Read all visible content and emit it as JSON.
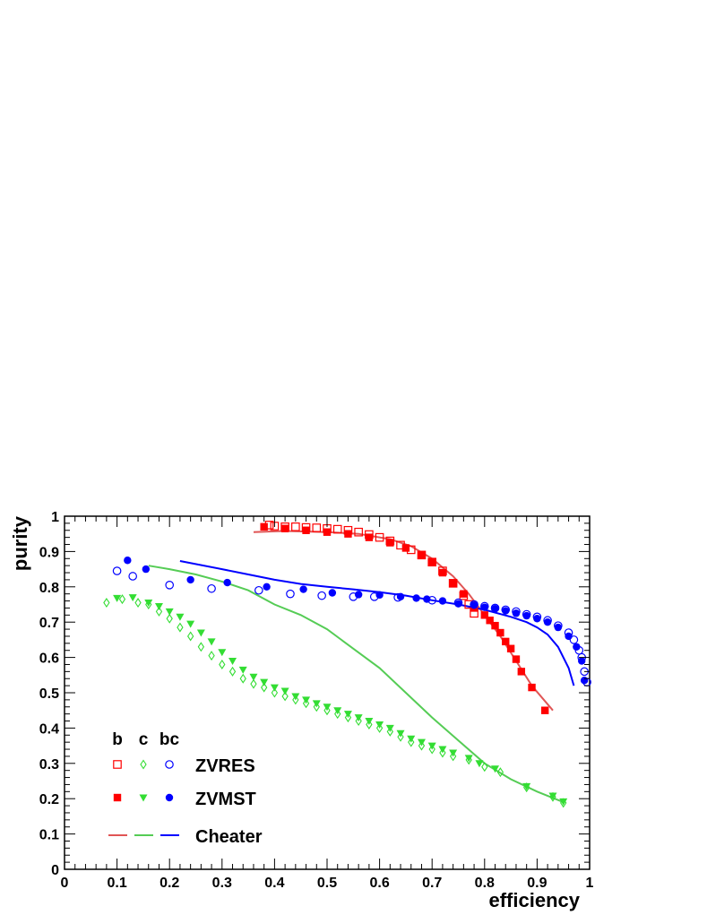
{
  "chart_data": {
    "type": "scatter",
    "xlabel": "efficiency",
    "ylabel": "purity",
    "xlim": [
      0,
      1
    ],
    "ylim": [
      0,
      1
    ],
    "x_ticks": [
      0,
      0.1,
      0.2,
      0.3,
      0.4,
      0.5,
      0.6,
      0.7,
      0.8,
      0.9,
      1
    ],
    "y_ticks": [
      0,
      0.1,
      0.2,
      0.3,
      0.4,
      0.5,
      0.6,
      0.7,
      0.8,
      0.9,
      1
    ],
    "x_tick_labels": [
      "0",
      "0.1",
      "0.2",
      "0.3",
      "0.4",
      "0.5",
      "0.6",
      "0.7",
      "0.8",
      "0.9",
      "1"
    ],
    "y_tick_labels": [
      "0",
      "0.1",
      "0.2",
      "0.3",
      "0.4",
      "0.5",
      "0.6",
      "0.7",
      "0.8",
      "0.9",
      "1"
    ],
    "grid": false,
    "legend": {
      "position": "bottom-left",
      "column_headers": [
        "b",
        "c",
        "bc"
      ],
      "rows": [
        "ZVRES",
        "ZVMST",
        "Cheater"
      ]
    },
    "colors": {
      "b": "#ff0000",
      "c": "#33dd33",
      "bc": "#0000ff",
      "b_line": "#e05555",
      "c_line": "#55cc55"
    },
    "series": [
      {
        "group": "ZVRES",
        "flavour": "b",
        "marker": "open-square",
        "points": [
          [
            0.39,
            0.975
          ],
          [
            0.4,
            0.972
          ],
          [
            0.42,
            0.97
          ],
          [
            0.44,
            0.97
          ],
          [
            0.46,
            0.968
          ],
          [
            0.48,
            0.967
          ],
          [
            0.5,
            0.965
          ],
          [
            0.52,
            0.963
          ],
          [
            0.54,
            0.96
          ],
          [
            0.56,
            0.955
          ],
          [
            0.58,
            0.948
          ],
          [
            0.6,
            0.94
          ],
          [
            0.62,
            0.93
          ],
          [
            0.64,
            0.918
          ],
          [
            0.66,
            0.905
          ],
          [
            0.68,
            0.89
          ],
          [
            0.7,
            0.87
          ],
          [
            0.72,
            0.845
          ],
          [
            0.74,
            0.81
          ],
          [
            0.76,
            0.775
          ],
          [
            0.77,
            0.75
          ],
          [
            0.78,
            0.725
          ]
        ]
      },
      {
        "group": "ZVMST",
        "flavour": "b",
        "marker": "filled-square",
        "points": [
          [
            0.38,
            0.97
          ],
          [
            0.42,
            0.965
          ],
          [
            0.46,
            0.96
          ],
          [
            0.5,
            0.955
          ],
          [
            0.54,
            0.95
          ],
          [
            0.58,
            0.94
          ],
          [
            0.62,
            0.925
          ],
          [
            0.65,
            0.91
          ],
          [
            0.68,
            0.89
          ],
          [
            0.7,
            0.87
          ],
          [
            0.72,
            0.84
          ],
          [
            0.74,
            0.81
          ],
          [
            0.76,
            0.78
          ],
          [
            0.78,
            0.74
          ],
          [
            0.8,
            0.72
          ],
          [
            0.81,
            0.705
          ],
          [
            0.82,
            0.69
          ],
          [
            0.83,
            0.67
          ],
          [
            0.84,
            0.645
          ],
          [
            0.85,
            0.625
          ],
          [
            0.86,
            0.595
          ],
          [
            0.87,
            0.56
          ],
          [
            0.89,
            0.515
          ],
          [
            0.915,
            0.45
          ]
        ]
      },
      {
        "group": "ZVRES",
        "flavour": "c",
        "marker": "open-diamond",
        "points": [
          [
            0.08,
            0.755
          ],
          [
            0.11,
            0.765
          ],
          [
            0.14,
            0.755
          ],
          [
            0.16,
            0.75
          ],
          [
            0.18,
            0.73
          ],
          [
            0.2,
            0.71
          ],
          [
            0.22,
            0.685
          ],
          [
            0.24,
            0.66
          ],
          [
            0.26,
            0.63
          ],
          [
            0.28,
            0.605
          ],
          [
            0.3,
            0.58
          ],
          [
            0.32,
            0.56
          ],
          [
            0.34,
            0.54
          ],
          [
            0.36,
            0.525
          ],
          [
            0.38,
            0.515
          ],
          [
            0.4,
            0.5
          ],
          [
            0.42,
            0.49
          ],
          [
            0.44,
            0.48
          ],
          [
            0.46,
            0.47
          ],
          [
            0.48,
            0.46
          ],
          [
            0.5,
            0.45
          ],
          [
            0.52,
            0.44
          ],
          [
            0.54,
            0.43
          ],
          [
            0.56,
            0.42
          ],
          [
            0.58,
            0.41
          ],
          [
            0.6,
            0.4
          ],
          [
            0.62,
            0.39
          ],
          [
            0.64,
            0.375
          ],
          [
            0.66,
            0.36
          ],
          [
            0.68,
            0.35
          ],
          [
            0.7,
            0.34
          ],
          [
            0.72,
            0.33
          ],
          [
            0.74,
            0.32
          ],
          [
            0.77,
            0.31
          ],
          [
            0.8,
            0.29
          ],
          [
            0.83,
            0.275
          ],
          [
            0.88,
            0.232
          ],
          [
            0.93,
            0.205
          ],
          [
            0.95,
            0.188
          ]
        ]
      },
      {
        "group": "ZVMST",
        "flavour": "c",
        "marker": "filled-triangle-down",
        "points": [
          [
            0.1,
            0.768
          ],
          [
            0.13,
            0.77
          ],
          [
            0.16,
            0.755
          ],
          [
            0.18,
            0.745
          ],
          [
            0.2,
            0.73
          ],
          [
            0.22,
            0.715
          ],
          [
            0.24,
            0.695
          ],
          [
            0.26,
            0.67
          ],
          [
            0.28,
            0.645
          ],
          [
            0.3,
            0.615
          ],
          [
            0.32,
            0.59
          ],
          [
            0.34,
            0.565
          ],
          [
            0.36,
            0.545
          ],
          [
            0.38,
            0.53
          ],
          [
            0.4,
            0.515
          ],
          [
            0.42,
            0.505
          ],
          [
            0.44,
            0.49
          ],
          [
            0.46,
            0.48
          ],
          [
            0.48,
            0.47
          ],
          [
            0.5,
            0.46
          ],
          [
            0.52,
            0.45
          ],
          [
            0.54,
            0.44
          ],
          [
            0.56,
            0.43
          ],
          [
            0.58,
            0.42
          ],
          [
            0.6,
            0.41
          ],
          [
            0.62,
            0.4
          ],
          [
            0.64,
            0.385
          ],
          [
            0.66,
            0.37
          ],
          [
            0.68,
            0.36
          ],
          [
            0.7,
            0.35
          ],
          [
            0.72,
            0.34
          ],
          [
            0.74,
            0.33
          ],
          [
            0.77,
            0.315
          ],
          [
            0.79,
            0.3
          ],
          [
            0.82,
            0.285
          ],
          [
            0.88,
            0.235
          ],
          [
            0.93,
            0.208
          ],
          [
            0.95,
            0.192
          ]
        ]
      },
      {
        "group": "ZVRES",
        "flavour": "bc",
        "marker": "open-circle",
        "points": [
          [
            0.1,
            0.845
          ],
          [
            0.13,
            0.83
          ],
          [
            0.2,
            0.805
          ],
          [
            0.28,
            0.795
          ],
          [
            0.37,
            0.79
          ],
          [
            0.43,
            0.78
          ],
          [
            0.49,
            0.775
          ],
          [
            0.55,
            0.772
          ],
          [
            0.59,
            0.772
          ],
          [
            0.635,
            0.77
          ],
          [
            0.7,
            0.762
          ],
          [
            0.75,
            0.755
          ],
          [
            0.78,
            0.75
          ],
          [
            0.8,
            0.745
          ],
          [
            0.82,
            0.74
          ],
          [
            0.84,
            0.735
          ],
          [
            0.86,
            0.73
          ],
          [
            0.88,
            0.722
          ],
          [
            0.9,
            0.715
          ],
          [
            0.92,
            0.705
          ],
          [
            0.94,
            0.69
          ],
          [
            0.96,
            0.67
          ],
          [
            0.97,
            0.65
          ],
          [
            0.98,
            0.62
          ],
          [
            0.985,
            0.6
          ],
          [
            0.99,
            0.56
          ],
          [
            0.995,
            0.53
          ]
        ]
      },
      {
        "group": "ZVMST",
        "flavour": "bc",
        "marker": "filled-circle",
        "points": [
          [
            0.12,
            0.875
          ],
          [
            0.155,
            0.85
          ],
          [
            0.24,
            0.82
          ],
          [
            0.31,
            0.812
          ],
          [
            0.385,
            0.8
          ],
          [
            0.455,
            0.793
          ],
          [
            0.51,
            0.783
          ],
          [
            0.56,
            0.778
          ],
          [
            0.6,
            0.777
          ],
          [
            0.64,
            0.772
          ],
          [
            0.67,
            0.768
          ],
          [
            0.69,
            0.765
          ],
          [
            0.72,
            0.76
          ],
          [
            0.75,
            0.752
          ],
          [
            0.78,
            0.748
          ],
          [
            0.8,
            0.742
          ],
          [
            0.82,
            0.738
          ],
          [
            0.84,
            0.732
          ],
          [
            0.86,
            0.725
          ],
          [
            0.88,
            0.718
          ],
          [
            0.9,
            0.71
          ],
          [
            0.92,
            0.7
          ],
          [
            0.94,
            0.685
          ],
          [
            0.96,
            0.66
          ],
          [
            0.975,
            0.63
          ],
          [
            0.985,
            0.59
          ],
          [
            0.99,
            0.535
          ]
        ]
      },
      {
        "group": "Cheater",
        "flavour": "b",
        "marker": "line",
        "points": [
          [
            0.36,
            0.955
          ],
          [
            0.42,
            0.958
          ],
          [
            0.5,
            0.955
          ],
          [
            0.56,
            0.95
          ],
          [
            0.62,
            0.935
          ],
          [
            0.66,
            0.915
          ],
          [
            0.7,
            0.88
          ],
          [
            0.74,
            0.83
          ],
          [
            0.77,
            0.78
          ],
          [
            0.8,
            0.72
          ],
          [
            0.83,
            0.66
          ],
          [
            0.86,
            0.59
          ],
          [
            0.89,
            0.52
          ],
          [
            0.93,
            0.45
          ]
        ]
      },
      {
        "group": "Cheater",
        "flavour": "c",
        "marker": "line",
        "points": [
          [
            0.16,
            0.86
          ],
          [
            0.2,
            0.85
          ],
          [
            0.25,
            0.835
          ],
          [
            0.3,
            0.815
          ],
          [
            0.35,
            0.79
          ],
          [
            0.4,
            0.75
          ],
          [
            0.45,
            0.72
          ],
          [
            0.5,
            0.68
          ],
          [
            0.55,
            0.625
          ],
          [
            0.6,
            0.57
          ],
          [
            0.65,
            0.5
          ],
          [
            0.7,
            0.43
          ],
          [
            0.75,
            0.365
          ],
          [
            0.8,
            0.3
          ],
          [
            0.85,
            0.255
          ],
          [
            0.9,
            0.22
          ],
          [
            0.95,
            0.19
          ]
        ]
      },
      {
        "group": "Cheater",
        "flavour": "bc",
        "marker": "line",
        "points": [
          [
            0.22,
            0.873
          ],
          [
            0.3,
            0.85
          ],
          [
            0.35,
            0.835
          ],
          [
            0.4,
            0.82
          ],
          [
            0.45,
            0.808
          ],
          [
            0.5,
            0.8
          ],
          [
            0.55,
            0.793
          ],
          [
            0.6,
            0.785
          ],
          [
            0.65,
            0.775
          ],
          [
            0.7,
            0.762
          ],
          [
            0.75,
            0.75
          ],
          [
            0.8,
            0.735
          ],
          [
            0.85,
            0.715
          ],
          [
            0.88,
            0.7
          ],
          [
            0.9,
            0.685
          ],
          [
            0.92,
            0.665
          ],
          [
            0.94,
            0.63
          ],
          [
            0.96,
            0.57
          ],
          [
            0.97,
            0.52
          ]
        ]
      }
    ]
  }
}
